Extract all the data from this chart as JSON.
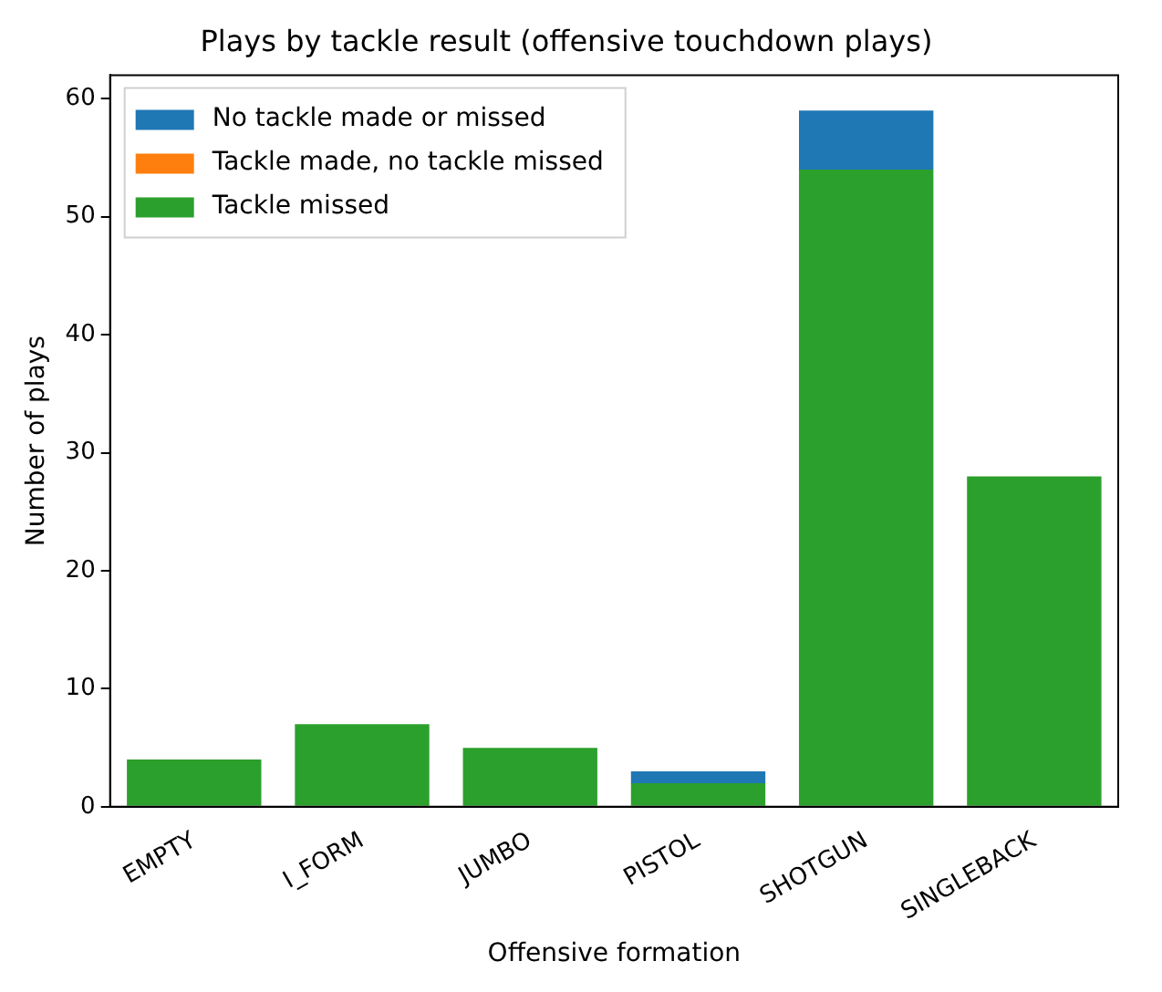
{
  "chart_data": {
    "type": "bar",
    "title": "Plays by tackle result (offensive touchdown plays)",
    "xlabel": "Offensive formation",
    "ylabel": "Number of plays",
    "categories": [
      "EMPTY",
      "I_FORM",
      "JUMBO",
      "PISTOL",
      "SHOTGUN",
      "SINGLEBACK"
    ],
    "series": [
      {
        "name": "Tackle missed",
        "color": "#2ca02c",
        "values": [
          4,
          7,
          5,
          2,
          54,
          28
        ]
      },
      {
        "name": "Tackle made, no tackle missed",
        "color": "#ff7f0e",
        "values": [
          0,
          0,
          0,
          0,
          0,
          0
        ]
      },
      {
        "name": "No tackle made or missed",
        "color": "#1f77b4",
        "values": [
          0,
          0,
          0,
          1,
          5,
          0
        ]
      }
    ],
    "stacked": true,
    "ylim": [
      0,
      62
    ],
    "yticks": [
      0,
      10,
      20,
      30,
      40,
      50,
      60
    ],
    "grid": false,
    "legend": "top left"
  }
}
